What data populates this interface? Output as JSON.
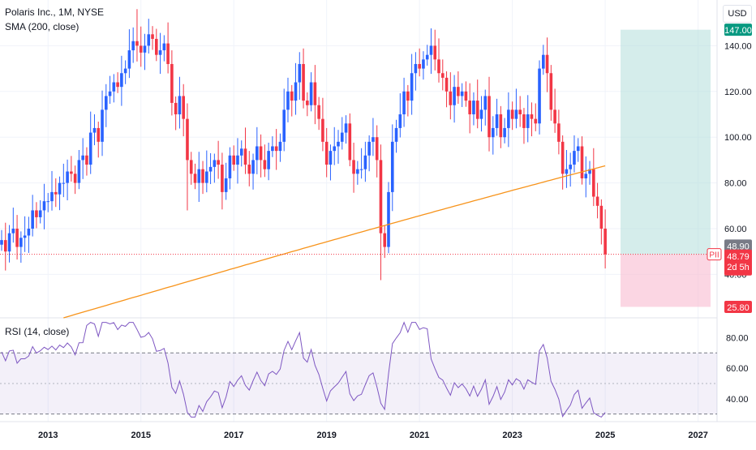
{
  "legend": {
    "title": "Polaris Inc., 1M, NYSE",
    "sma": "SMA (200, close)",
    "rsi": "RSI (14, close)"
  },
  "currency": "USD",
  "colors": {
    "up": "#2962ff",
    "down": "#f23645",
    "sma": "#f7931a",
    "rsi": "#7e57c2",
    "profit_zone": "#b2dfdb",
    "loss_zone": "#f8bbd0",
    "grid": "#f0f3fa"
  },
  "price_axis": {
    "ticks": [
      "140.00",
      "120.00",
      "100.00",
      "80.00",
      "60.00",
      "40.00"
    ],
    "ylim": [
      21,
      160
    ]
  },
  "rsi_axis": {
    "ticks": [
      "80.00",
      "60.00",
      "40.00"
    ],
    "ylim": [
      25,
      93
    ],
    "upper_band": 70,
    "lower_band": 30
  },
  "time_axis": {
    "ticks": [
      "2013",
      "2015",
      "2017",
      "2019",
      "2021",
      "2023",
      "2025",
      "2027"
    ]
  },
  "badges": {
    "target": "147.00",
    "current": "48.90",
    "symbol": "PII",
    "last": "48.79",
    "countdown": "2d 5h",
    "stop": "25.80"
  },
  "chart_data": {
    "type": "candlestick",
    "symbol": "PII",
    "interval": "1M",
    "series": [
      {
        "name": "Polaris Inc., 1M, NYSE",
        "x": [
          "2012-01",
          "2012-02",
          "2012-03",
          "2012-04",
          "2012-05",
          "2012-06",
          "2012-07",
          "2012-08",
          "2012-09",
          "2012-10",
          "2012-11",
          "2012-12",
          "2013-01",
          "2013-02",
          "2013-03",
          "2013-04",
          "2013-05",
          "2013-06",
          "2013-07",
          "2013-08",
          "2013-09",
          "2013-10",
          "2013-11",
          "2013-12",
          "2014-01",
          "2014-02",
          "2014-03",
          "2014-04",
          "2014-05",
          "2014-06",
          "2014-07",
          "2014-08",
          "2014-09",
          "2014-10",
          "2014-11",
          "2014-12",
          "2015-01",
          "2015-02",
          "2015-03",
          "2015-04",
          "2015-05",
          "2015-06",
          "2015-07",
          "2015-08",
          "2015-09",
          "2015-10",
          "2015-11",
          "2015-12",
          "2016-01",
          "2016-02",
          "2016-03",
          "2016-04",
          "2016-05",
          "2016-06",
          "2016-07",
          "2016-08",
          "2016-09",
          "2016-10",
          "2016-11",
          "2016-12",
          "2017-01",
          "2017-02",
          "2017-03",
          "2017-04",
          "2017-05",
          "2017-06",
          "2017-07",
          "2017-08",
          "2017-09",
          "2017-10",
          "2017-11",
          "2017-12",
          "2018-01",
          "2018-02",
          "2018-03",
          "2018-04",
          "2018-05",
          "2018-06",
          "2018-07",
          "2018-08",
          "2018-09",
          "2018-10",
          "2018-11",
          "2018-12",
          "2019-01",
          "2019-02",
          "2019-03",
          "2019-04",
          "2019-05",
          "2019-06",
          "2019-07",
          "2019-08",
          "2019-09",
          "2019-10",
          "2019-11",
          "2019-12",
          "2020-01",
          "2020-02",
          "2020-03",
          "2020-04",
          "2020-05",
          "2020-06",
          "2020-07",
          "2020-08",
          "2020-09",
          "2020-10",
          "2020-11",
          "2020-12",
          "2021-01",
          "2021-02",
          "2021-03",
          "2021-04",
          "2021-05",
          "2021-06",
          "2021-07",
          "2021-08",
          "2021-09",
          "2021-10",
          "2021-11",
          "2021-12",
          "2022-01",
          "2022-02",
          "2022-03",
          "2022-04",
          "2022-05",
          "2022-06",
          "2022-07",
          "2022-08",
          "2022-09",
          "2022-10",
          "2022-11",
          "2022-12",
          "2023-01",
          "2023-02",
          "2023-03",
          "2023-04",
          "2023-05",
          "2023-06",
          "2023-07",
          "2023-08",
          "2023-09",
          "2023-10",
          "2023-11",
          "2023-12",
          "2024-01",
          "2024-02",
          "2024-03",
          "2024-04",
          "2024-05",
          "2024-06",
          "2024-07",
          "2024-08",
          "2024-09",
          "2024-10",
          "2024-11",
          "2024-12",
          "2025-01"
        ],
        "close": [
          55,
          50,
          58,
          60,
          52,
          56,
          57,
          60,
          68,
          65,
          68,
          72,
          72,
          76,
          75,
          80,
          80,
          85,
          84,
          80,
          90,
          92,
          88,
          102,
          104,
          98,
          112,
          118,
          120,
          124,
          122,
          128,
          130,
          138,
          142,
          140,
          137,
          140,
          145,
          143,
          136,
          138,
          141,
          132,
          115,
          110,
          118,
          108,
          90,
          84,
          80,
          86,
          80,
          85,
          87,
          90,
          88,
          76,
          82,
          92,
          88,
          92,
          95,
          88,
          84,
          90,
          96,
          90,
          86,
          94,
          96,
          94,
          98,
          112,
          120,
          116,
          124,
          132,
          116,
          114,
          124,
          114,
          108,
          98,
          88,
          94,
          96,
          98,
          102,
          106,
          90,
          84,
          86,
          86,
          92,
          98,
          100,
          90,
          58,
          52,
          76,
          98,
          104,
          110,
          120,
          116,
          128,
          132,
          130,
          134,
          136,
          140,
          134,
          128,
          126,
          120,
          114,
          122,
          118,
          120,
          116,
          110,
          116,
          108,
          112,
          118,
          100,
          104,
          110,
          100,
          104,
          112,
          108,
          112,
          110,
          104,
          110,
          108,
          106,
          130,
          136,
          128,
          112,
          106,
          98,
          84,
          86,
          88,
          94,
          96,
          82,
          84,
          86,
          74,
          70,
          60,
          48.79
        ]
      }
    ],
    "indicators": [
      {
        "name": "SMA (200, close)",
        "start": "2013-05",
        "values_start": 21,
        "values_end": 87.5
      },
      {
        "name": "RSI (14, close)",
        "ylim": [
          25,
          93
        ],
        "last": 31
      }
    ],
    "position": {
      "type": "long",
      "entry": 48.79,
      "target": 147.0,
      "stop": 25.8
    },
    "xlim": [
      "2012-01",
      "2027-01"
    ],
    "ylim": [
      21,
      160
    ]
  }
}
